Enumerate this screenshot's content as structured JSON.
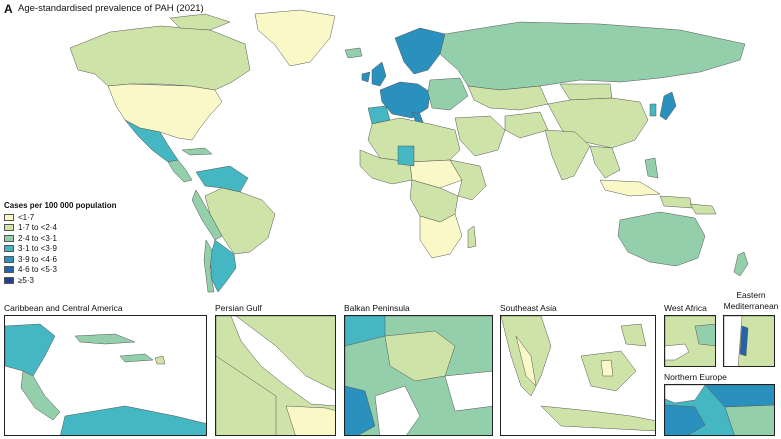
{
  "panel": "A",
  "title": "Age-standardised prevalence of PAH (2021)",
  "legend": {
    "title": "Cases per 100 000 population",
    "items": [
      {
        "label": "<1·7",
        "color": "#fbf8c8"
      },
      {
        "label": "1·7 to <2·4",
        "color": "#cde3a8"
      },
      {
        "label": "2·4 to <3·1",
        "color": "#93cfab"
      },
      {
        "label": "3·1 to <3·9",
        "color": "#45b7c3"
      },
      {
        "label": "3·9 to <4·6",
        "color": "#2a91be"
      },
      {
        "label": "4·6 to <5·3",
        "color": "#2564a8"
      },
      {
        "label": "≥5·3",
        "color": "#253e8f"
      }
    ]
  },
  "insets": [
    {
      "label": "Caribbean and Central America"
    },
    {
      "label": "Persian Gulf"
    },
    {
      "label": "Balkan Peninsula"
    },
    {
      "label": "Southeast Asia"
    },
    {
      "label": "West Africa"
    },
    {
      "label": "Eastern Mediterranean"
    },
    {
      "label": "Northern Europe"
    }
  ]
}
